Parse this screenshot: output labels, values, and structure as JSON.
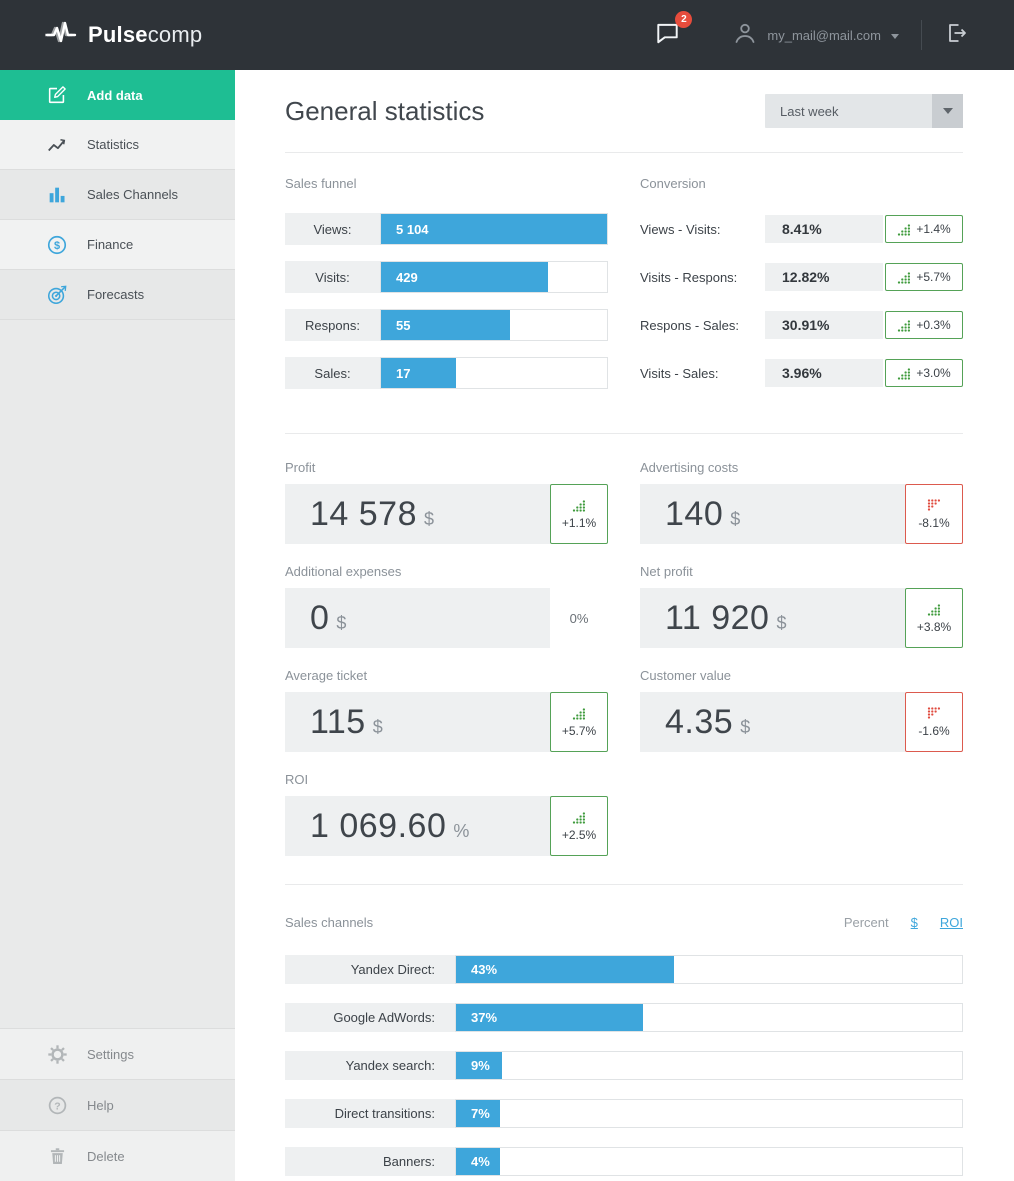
{
  "topbar": {
    "brand_bold": "Pulse",
    "brand_light": "comp",
    "notifications_count": "2",
    "user_email": "my_mail@mail.com"
  },
  "sidebar": {
    "items": [
      {
        "label": "Add data",
        "icon": "edit-icon",
        "active": true
      },
      {
        "label": "Statistics",
        "icon": "line-chart-icon",
        "active": false
      },
      {
        "label": "Sales Channels",
        "icon": "bar-chart-icon",
        "active": false
      },
      {
        "label": "Finance",
        "icon": "dollar-circle-icon",
        "active": false
      },
      {
        "label": "Forecasts",
        "icon": "target-icon",
        "active": false
      }
    ],
    "footer_items": [
      {
        "label": "Settings",
        "icon": "gear-icon"
      },
      {
        "label": "Help",
        "icon": "question-circle-icon"
      },
      {
        "label": "Delete",
        "icon": "trash-icon"
      }
    ]
  },
  "header": {
    "title": "General statistics",
    "period": "Last week"
  },
  "sales_funnel": {
    "title": "Sales funnel",
    "rows": [
      {
        "label": "Views:",
        "value": "5 104",
        "pct": 100
      },
      {
        "label": "Visits:",
        "value": "429",
        "pct": 74
      },
      {
        "label": "Respons:",
        "value": "55",
        "pct": 57
      },
      {
        "label": "Sales:",
        "value": "17",
        "pct": 33
      }
    ]
  },
  "conversion": {
    "title": "Conversion",
    "rows": [
      {
        "label": "Views - Visits:",
        "value": "8.41%",
        "delta": "+1.4%",
        "trend": "up"
      },
      {
        "label": "Visits - Respons:",
        "value": "12.82%",
        "delta": "+5.7%",
        "trend": "up"
      },
      {
        "label": "Respons - Sales:",
        "value": "30.91%",
        "delta": "+0.3%",
        "trend": "up"
      },
      {
        "label": "Visits - Sales:",
        "value": "3.96%",
        "delta": "+3.0%",
        "trend": "up"
      }
    ]
  },
  "metrics": [
    {
      "label": "Profit",
      "value": "14 578",
      "unit": "$",
      "delta": "+1.1%",
      "trend": "up"
    },
    {
      "label": "Advertising costs",
      "value": "140",
      "unit": "$",
      "delta": "-8.1%",
      "trend": "down"
    },
    {
      "label": "Additional expenses",
      "value": "0",
      "unit": "$",
      "delta": "0%",
      "trend": "flat"
    },
    {
      "label": "Net profit",
      "value": "11 920",
      "unit": "$",
      "delta": "+3.8%",
      "trend": "up"
    },
    {
      "label": "Average ticket",
      "value": "115",
      "unit": "$",
      "delta": "+5.7%",
      "trend": "up"
    },
    {
      "label": "Customer value",
      "value": "4.35",
      "unit": "$",
      "delta": "-1.6%",
      "trend": "down"
    },
    {
      "label": "ROI",
      "value": "1 069.60",
      "unit": "%",
      "delta": "+2.5%",
      "trend": "up"
    }
  ],
  "sales_channels": {
    "title": "Sales channels",
    "modes": [
      {
        "label": "Percent",
        "active": true
      },
      {
        "label": "$",
        "active": false
      },
      {
        "label": "ROI",
        "active": false
      }
    ],
    "rows": [
      {
        "label": "Yandex Direct:",
        "value": "43%",
        "pct": 43
      },
      {
        "label": "Google AdWords:",
        "value": "37%",
        "pct": 37
      },
      {
        "label": "Yandex search:",
        "value": "9%",
        "pct": 9
      },
      {
        "label": "Direct transitions:",
        "value": "7%",
        "pct": 7
      },
      {
        "label": "Banners:",
        "value": "4%",
        "pct": 4
      }
    ]
  },
  "colors": {
    "accent_green": "#1ebe93",
    "bar_blue": "#3ea6db",
    "trend_up": "#3f9b3d",
    "trend_down": "#e04b3f",
    "notification_red": "#e74c3c"
  }
}
